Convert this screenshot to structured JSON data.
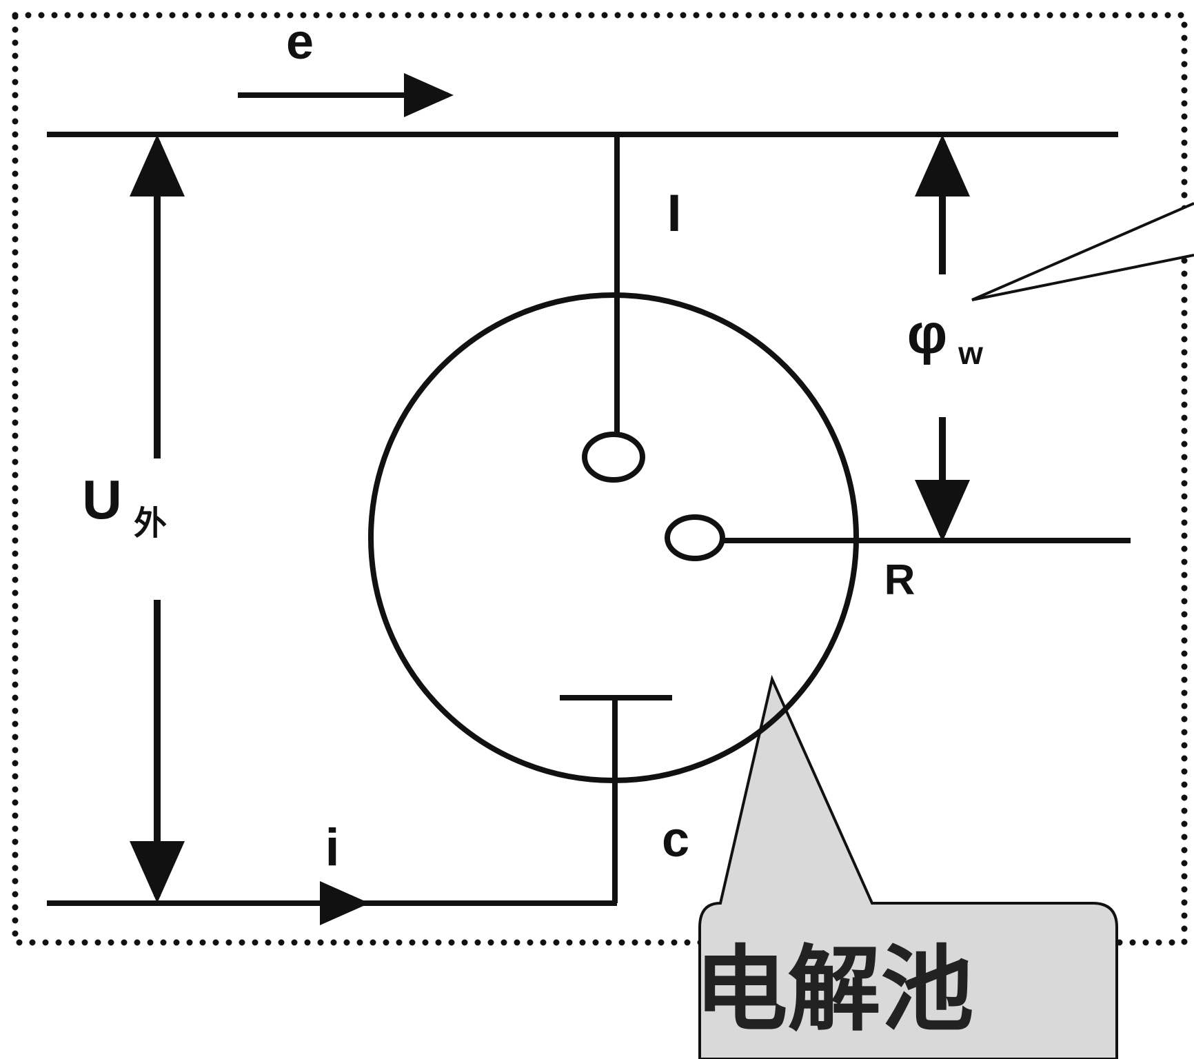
{
  "labels": {
    "electron": "e",
    "current_top": "I",
    "phi": "φ",
    "phi_sub": "w",
    "u": "U",
    "u_sub": "外",
    "reference": "R",
    "counter": "c",
    "current_bottom": "i"
  },
  "callout": {
    "text": "电解池"
  },
  "colors": {
    "line": "#111111",
    "callout_fill": "#d9d9d9",
    "callout_text": "#222222",
    "background": "#ffffff"
  }
}
